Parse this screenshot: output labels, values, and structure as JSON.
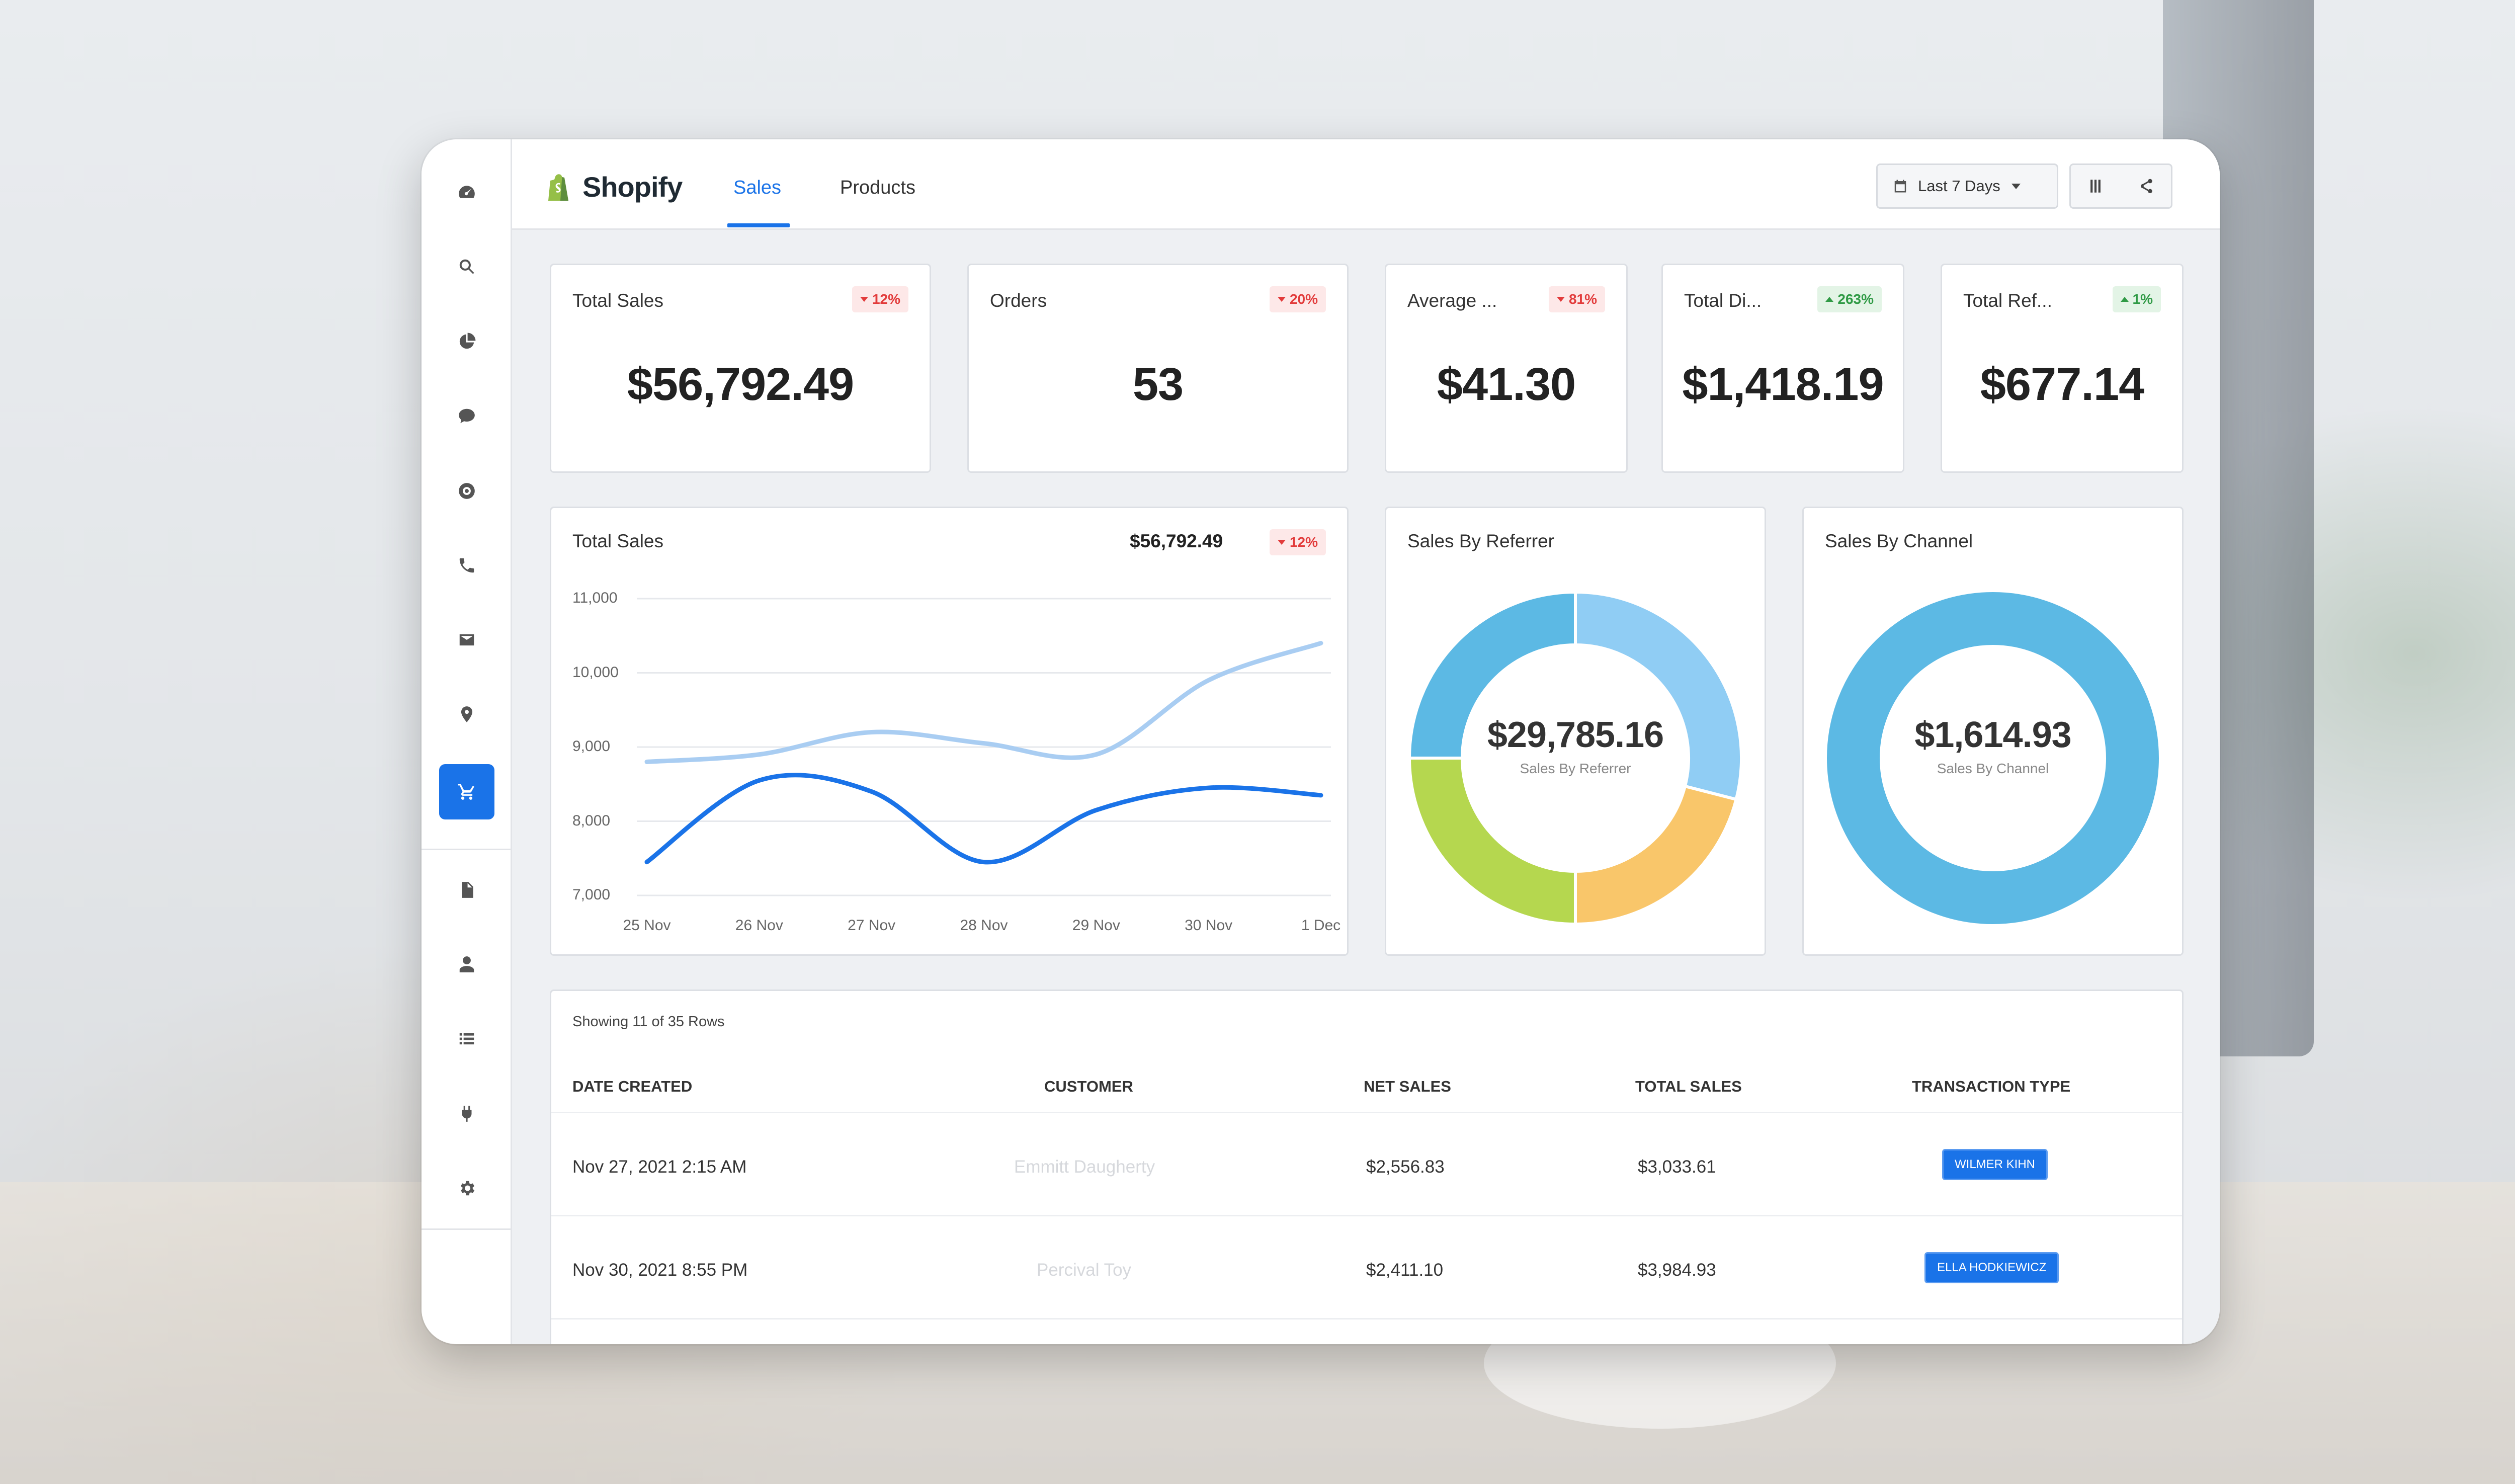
{
  "app": {
    "name": "Shopify"
  },
  "tabs": [
    {
      "label": "Sales",
      "active": true
    },
    {
      "label": "Products",
      "active": false
    }
  ],
  "toolbar": {
    "date_range": "Last 7 Days",
    "columns_icon": "columns-icon",
    "share_icon": "share-icon"
  },
  "sidebar": {
    "items": [
      {
        "icon": "dashboard-icon"
      },
      {
        "icon": "search-icon"
      },
      {
        "icon": "pie-chart-icon"
      },
      {
        "icon": "chat-icon"
      },
      {
        "icon": "support-icon"
      },
      {
        "icon": "phone-icon"
      },
      {
        "icon": "mail-icon"
      },
      {
        "icon": "location-icon"
      },
      {
        "icon": "cart-icon",
        "active": true
      },
      {
        "icon": "report-icon"
      },
      {
        "icon": "user-icon"
      },
      {
        "icon": "list-icon"
      },
      {
        "icon": "plug-icon"
      },
      {
        "icon": "gear-icon"
      }
    ]
  },
  "kpis": [
    {
      "label": "Total Sales",
      "value": "$56,792.49",
      "change": "12%",
      "direction": "down"
    },
    {
      "label": "Orders",
      "value": "53",
      "change": "20%",
      "direction": "down"
    },
    {
      "label": "Average ...",
      "value": "$41.30",
      "change": "81%",
      "direction": "down"
    },
    {
      "label": "Total Di...",
      "value": "$1,418.19",
      "change": "263%",
      "direction": "up"
    },
    {
      "label": "Total Ref...",
      "value": "$677.14",
      "change": "1%",
      "direction": "up"
    }
  ],
  "line_chart": {
    "title": "Total Sales",
    "total": "$56,792.49",
    "change": "12%",
    "direction": "down"
  },
  "referrer_chart": {
    "title": "Sales By Referrer",
    "center_value": "$29,785.16",
    "center_label": "Sales By Referrer"
  },
  "channel_chart": {
    "title": "Sales By Channel",
    "center_value": "$1,614.93",
    "center_label": "Sales By Channel"
  },
  "chart_data": [
    {
      "type": "line",
      "title": "Total Sales",
      "categories": [
        "25 Nov",
        "26 Nov",
        "27 Nov",
        "28 Nov",
        "29 Nov",
        "30 Nov",
        "1 Dec"
      ],
      "y_ticks": [
        "11,000",
        "10,000",
        "9,000",
        "8,000",
        "7,000"
      ],
      "ylim": [
        7000,
        11000
      ],
      "series": [
        {
          "values": [
            8800,
            8900,
            9200,
            9050,
            8900,
            9900,
            10400
          ],
          "color": "#a9cdf2"
        },
        {
          "values": [
            7450,
            8550,
            8400,
            7450,
            8150,
            8450,
            8350
          ],
          "color": "#1a73e8"
        }
      ]
    },
    {
      "type": "pie",
      "title": "Sales By Referrer",
      "values": [
        29,
        21,
        25,
        25
      ],
      "colors": [
        "#90cdf4",
        "#f9c66a",
        "#b5d74f",
        "#5cb9e4"
      ]
    },
    {
      "type": "pie",
      "title": "Sales By Channel",
      "values": [
        100
      ],
      "colors": [
        "#5cb9e4"
      ]
    }
  ],
  "table": {
    "showing": "Showing 11 of 35 Rows",
    "headers": [
      "DATE CREATED",
      "CUSTOMER",
      "NET SALES",
      "TOTAL SALES",
      "TRANSACTION TYPE"
    ],
    "rows": [
      {
        "date": "Nov 27, 2021 2:15 AM",
        "customer": "Emmitt Daugherty",
        "net": "$2,556.83",
        "total": "$3,033.61",
        "type": "WILMER KIHN"
      },
      {
        "date": "Nov 30, 2021 8:55 PM",
        "customer": "Percival Toy",
        "net": "$2,411.10",
        "total": "$3,984.93",
        "type": "ELLA HODKIEWICZ"
      }
    ]
  }
}
